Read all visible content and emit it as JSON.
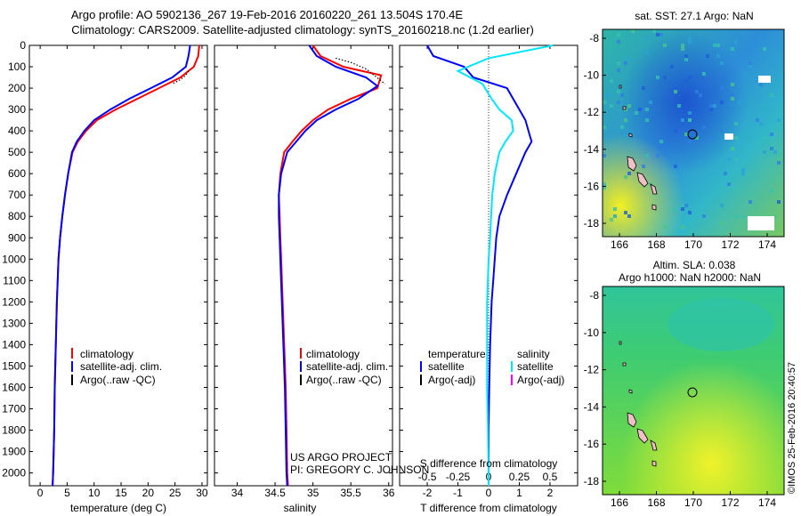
{
  "header": {
    "title_line1": "Argo profile: AO 5902136_267 19-Feb-2016 20160220_261 13.504S 170.4E",
    "title_line2": "Climatology: CARS2009. Satellite-adjusted climatology: synTS_20160218.nc (1.2d earlier)"
  },
  "colors": {
    "climatology": "#ff0000",
    "satellite": "#0000ff",
    "argo": "#000000",
    "salinity_satellite": "#00e5ff",
    "salinity_argo": "#ff00ff"
  },
  "depth_axis": {
    "ticks": [
      0,
      100,
      200,
      300,
      400,
      500,
      600,
      700,
      800,
      900,
      1000,
      1100,
      1200,
      1300,
      1400,
      1500,
      1600,
      1700,
      1800,
      1900,
      2000
    ],
    "range": [
      0,
      2060
    ]
  },
  "project_credit": {
    "line1": "US ARGO PROJECT",
    "line2": "PI: GREGORY C. JOHNSON"
  },
  "chart_data": [
    {
      "type": "line",
      "panel": "temperature",
      "xlabel": "temperature (deg C)",
      "xticks": [
        0,
        5,
        10,
        15,
        20,
        25,
        30
      ],
      "xlim": [
        -2,
        31
      ],
      "ylim": [
        0,
        2060
      ],
      "legend": [
        "climatology",
        "satellite-adj. clim.",
        "Argo(..raw -QC)"
      ],
      "series": [
        {
          "name": "climatology",
          "color": "#ff0000",
          "x": [
            29.5,
            29.3,
            28.5,
            26,
            22,
            18,
            14,
            10.5,
            8.5,
            7,
            6,
            5.2,
            4.6,
            4.1,
            3.7,
            3.4,
            3.1,
            2.9,
            2.7,
            2.6,
            2.5,
            2.4,
            2.3
          ],
          "y": [
            0,
            50,
            100,
            150,
            200,
            250,
            300,
            350,
            400,
            450,
            500,
            600,
            700,
            800,
            900,
            1000,
            1200,
            1400,
            1600,
            1800,
            1900,
            2000,
            2060
          ]
        },
        {
          "name": "satellite-adj. clim.",
          "color": "#0000ff",
          "x": [
            27.8,
            27.5,
            27.0,
            24.5,
            20.5,
            16.5,
            13,
            10,
            8.2,
            6.8,
            5.9,
            5.2,
            4.6,
            4.1,
            3.7,
            3.4,
            3.1,
            2.9,
            2.7,
            2.6,
            2.5,
            2.4,
            2.3
          ],
          "y": [
            0,
            50,
            100,
            150,
            200,
            250,
            300,
            350,
            400,
            450,
            500,
            600,
            700,
            800,
            900,
            1000,
            1200,
            1400,
            1600,
            1800,
            1900,
            2000,
            2060
          ]
        },
        {
          "name": "Argo(..raw -QC)",
          "color": "#000000",
          "dotted": true,
          "x": [
            27.5,
            27.0,
            26.0,
            24.5
          ],
          "y": [
            120,
            140,
            160,
            180
          ]
        }
      ]
    },
    {
      "type": "line",
      "panel": "salinity",
      "xlabel": "salinity",
      "xticks": [
        34,
        34.5,
        35,
        35.5,
        36
      ],
      "xlim": [
        33.7,
        36.05
      ],
      "ylim": [
        0,
        2060
      ],
      "legend": [
        "climatology",
        "satellite-adj. clim.",
        "Argo(..raw -QC)"
      ],
      "series": [
        {
          "name": "climatology",
          "color": "#ff0000",
          "x": [
            35.0,
            35.1,
            35.4,
            35.9,
            35.85,
            35.5,
            35.2,
            35.0,
            34.85,
            34.73,
            34.62,
            34.57,
            34.55,
            34.56,
            34.57,
            34.58,
            34.6,
            34.62,
            34.64,
            34.65,
            34.66,
            34.67
          ],
          "y": [
            0,
            50,
            100,
            140,
            200,
            250,
            300,
            350,
            400,
            450,
            500,
            600,
            700,
            800,
            900,
            1000,
            1200,
            1400,
            1600,
            1800,
            2000,
            2060
          ]
        },
        {
          "name": "satellite-adj. clim.",
          "color": "#0000ff",
          "x": [
            34.95,
            35.05,
            35.3,
            35.7,
            35.85,
            35.6,
            35.3,
            35.05,
            34.9,
            34.78,
            34.66,
            34.58,
            34.55,
            34.55,
            34.56,
            34.57,
            34.59,
            34.61,
            34.63,
            34.64,
            34.65,
            34.66
          ],
          "y": [
            0,
            50,
            100,
            150,
            190,
            250,
            300,
            350,
            400,
            450,
            500,
            600,
            700,
            800,
            900,
            1000,
            1200,
            1400,
            1600,
            1800,
            2000,
            2060
          ]
        },
        {
          "name": "Argo(..raw -QC)",
          "color": "#000000",
          "dotted": true,
          "x": [
            35.3,
            35.5,
            35.7,
            35.95
          ],
          "y": [
            60,
            80,
            110,
            180
          ]
        }
      ]
    },
    {
      "type": "line",
      "panel": "difference",
      "xlabel": "T difference from climatology",
      "xlabel_top": "S difference from climatology",
      "xticks_t": [
        -2,
        -1,
        0,
        1,
        2
      ],
      "xticks_s": [
        -0.5,
        -0.25,
        0,
        0.25,
        0.5
      ],
      "xlim": [
        -2.9,
        2.9
      ],
      "ylim": [
        0,
        2060
      ],
      "legend": {
        "temperature": {
          "heading": "temperature",
          "satellite": "satellite",
          "argo": "Argo(-adj)"
        },
        "salinity": {
          "heading": "salinity",
          "satellite": "satellite",
          "argo": "Argo(-adj)"
        }
      },
      "series": [
        {
          "name": "temperature satellite",
          "color": "#0000ff",
          "x": [
            -2.0,
            -1.8,
            -0.8,
            -0.5,
            0.6,
            0.8,
            1.0,
            1.2,
            1.3,
            1.4,
            1.2,
            0.9,
            0.6,
            0.35,
            0.25,
            0.2,
            0.15,
            0.1,
            0.05,
            0.02,
            0.0,
            0.0
          ],
          "y": [
            0,
            50,
            100,
            150,
            200,
            250,
            300,
            350,
            400,
            450,
            500,
            600,
            700,
            800,
            900,
            1000,
            1100,
            1200,
            1400,
            1600,
            1800,
            2060
          ]
        },
        {
          "name": "salinity satellite",
          "color": "#00e5ff",
          "x": [
            2.1,
            0.0,
            -1.0,
            -0.2,
            0.1,
            0.35,
            0.75,
            0.8,
            0.55,
            0.35,
            0.2,
            0.12,
            0.08,
            0.05,
            0.0,
            -0.05,
            -0.05,
            -0.05,
            -0.02,
            0.0,
            0.0
          ],
          "y": [
            0,
            60,
            120,
            180,
            250,
            300,
            350,
            400,
            450,
            500,
            600,
            700,
            800,
            900,
            1000,
            1200,
            1400,
            1600,
            1800,
            2000,
            2060
          ]
        }
      ]
    }
  ],
  "maps": {
    "sst": {
      "title": "sat. SST: 27.1  Argo: NaN",
      "yticks": [
        "-8",
        "-10",
        "-12",
        "-14",
        "-16",
        "-18"
      ],
      "xticks": [
        "166",
        "168",
        "170",
        "172",
        "174"
      ]
    },
    "sla": {
      "title_line1": "Altim. SLA: 0.038",
      "title_line2": "Argo h1000: NaN h2000: NaN",
      "yticks": [
        "-8",
        "-10",
        "-12",
        "-14",
        "-16",
        "-18"
      ],
      "xticks": [
        "166",
        "168",
        "170",
        "172",
        "174"
      ]
    },
    "credit": "©IMOS 25-Feb-2016 20:40:57"
  }
}
